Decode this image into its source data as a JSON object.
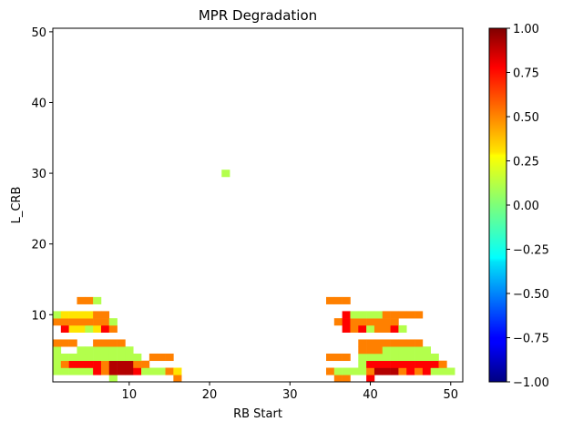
{
  "chart_data": {
    "type": "heatmap",
    "title": "MPR Degradation",
    "xlabel": "RB Start",
    "ylabel": "L_CRB",
    "xlim": [
      0.5,
      51.5
    ],
    "ylim": [
      0.5,
      50.5
    ],
    "x_ticks": [
      10,
      20,
      30,
      40,
      50
    ],
    "y_ticks": [
      10,
      20,
      30,
      40,
      50
    ],
    "grid": false,
    "colormap": "jet",
    "clim": [
      -1,
      1
    ],
    "colorbar_ticks": [
      "−1.00",
      "−0.75",
      "−0.50",
      "−0.25",
      "0.00",
      "0.25",
      "0.50",
      "0.75",
      "1.00"
    ],
    "cells": [
      {
        "x": 8,
        "y": 1,
        "value": 0.1
      },
      {
        "x": 16,
        "y": 1,
        "value": 0.5
      },
      {
        "x": 36,
        "y": 1,
        "value": 0.5
      },
      {
        "x": 37,
        "y": 1,
        "value": 0.5
      },
      {
        "x": 40,
        "y": 1,
        "value": 0.75
      },
      {
        "x": 1,
        "y": 2,
        "value": 0.1
      },
      {
        "x": 2,
        "y": 2,
        "value": 0.1
      },
      {
        "x": 3,
        "y": 2,
        "value": 0.1
      },
      {
        "x": 4,
        "y": 2,
        "value": 0.1
      },
      {
        "x": 5,
        "y": 2,
        "value": 0.1
      },
      {
        "x": 6,
        "y": 2,
        "value": 0.75
      },
      {
        "x": 7,
        "y": 2,
        "value": 0.5
      },
      {
        "x": 8,
        "y": 2,
        "value": 0.9
      },
      {
        "x": 9,
        "y": 2,
        "value": 0.9
      },
      {
        "x": 10,
        "y": 2,
        "value": 0.9
      },
      {
        "x": 11,
        "y": 2,
        "value": 0.75
      },
      {
        "x": 12,
        "y": 2,
        "value": 0.1
      },
      {
        "x": 13,
        "y": 2,
        "value": 0.1
      },
      {
        "x": 14,
        "y": 2,
        "value": 0.1
      },
      {
        "x": 15,
        "y": 2,
        "value": 0.5
      },
      {
        "x": 16,
        "y": 2,
        "value": 0.3
      },
      {
        "x": 35,
        "y": 2,
        "value": 0.5
      },
      {
        "x": 36,
        "y": 2,
        "value": 0.1
      },
      {
        "x": 37,
        "y": 2,
        "value": 0.1
      },
      {
        "x": 38,
        "y": 2,
        "value": 0.1
      },
      {
        "x": 39,
        "y": 2,
        "value": 0.1
      },
      {
        "x": 40,
        "y": 2,
        "value": 0.5
      },
      {
        "x": 41,
        "y": 2,
        "value": 0.9
      },
      {
        "x": 42,
        "y": 2,
        "value": 0.9
      },
      {
        "x": 43,
        "y": 2,
        "value": 0.9
      },
      {
        "x": 44,
        "y": 2,
        "value": 0.5
      },
      {
        "x": 45,
        "y": 2,
        "value": 0.75
      },
      {
        "x": 46,
        "y": 2,
        "value": 0.5
      },
      {
        "x": 47,
        "y": 2,
        "value": 0.75
      },
      {
        "x": 48,
        "y": 2,
        "value": 0.1
      },
      {
        "x": 49,
        "y": 2,
        "value": 0.1
      },
      {
        "x": 50,
        "y": 2,
        "value": 0.1
      },
      {
        "x": 1,
        "y": 3,
        "value": 0.1
      },
      {
        "x": 2,
        "y": 3,
        "value": 0.5
      },
      {
        "x": 3,
        "y": 3,
        "value": 0.75
      },
      {
        "x": 4,
        "y": 3,
        "value": 0.75
      },
      {
        "x": 5,
        "y": 3,
        "value": 0.75
      },
      {
        "x": 6,
        "y": 3,
        "value": 0.75
      },
      {
        "x": 7,
        "y": 3,
        "value": 0.5
      },
      {
        "x": 8,
        "y": 3,
        "value": 0.9
      },
      {
        "x": 9,
        "y": 3,
        "value": 0.9
      },
      {
        "x": 10,
        "y": 3,
        "value": 0.9
      },
      {
        "x": 11,
        "y": 3,
        "value": 0.5
      },
      {
        "x": 12,
        "y": 3,
        "value": 0.5
      },
      {
        "x": 39,
        "y": 3,
        "value": 0.1
      },
      {
        "x": 40,
        "y": 3,
        "value": 0.75
      },
      {
        "x": 41,
        "y": 3,
        "value": 0.75
      },
      {
        "x": 42,
        "y": 3,
        "value": 0.75
      },
      {
        "x": 43,
        "y": 3,
        "value": 0.75
      },
      {
        "x": 44,
        "y": 3,
        "value": 0.75
      },
      {
        "x": 45,
        "y": 3,
        "value": 0.75
      },
      {
        "x": 46,
        "y": 3,
        "value": 0.75
      },
      {
        "x": 47,
        "y": 3,
        "value": 0.75
      },
      {
        "x": 48,
        "y": 3,
        "value": 0.75
      },
      {
        "x": 49,
        "y": 3,
        "value": 0.5
      },
      {
        "x": 1,
        "y": 4,
        "value": 0.1
      },
      {
        "x": 2,
        "y": 4,
        "value": 0.1
      },
      {
        "x": 3,
        "y": 4,
        "value": 0.1
      },
      {
        "x": 4,
        "y": 4,
        "value": 0.1
      },
      {
        "x": 5,
        "y": 4,
        "value": 0.1
      },
      {
        "x": 6,
        "y": 4,
        "value": 0.1
      },
      {
        "x": 7,
        "y": 4,
        "value": 0.1
      },
      {
        "x": 8,
        "y": 4,
        "value": 0.1
      },
      {
        "x": 9,
        "y": 4,
        "value": 0.1
      },
      {
        "x": 10,
        "y": 4,
        "value": 0.1
      },
      {
        "x": 11,
        "y": 4,
        "value": 0.1
      },
      {
        "x": 13,
        "y": 4,
        "value": 0.5
      },
      {
        "x": 14,
        "y": 4,
        "value": 0.5
      },
      {
        "x": 15,
        "y": 4,
        "value": 0.5
      },
      {
        "x": 35,
        "y": 4,
        "value": 0.5
      },
      {
        "x": 36,
        "y": 4,
        "value": 0.5
      },
      {
        "x": 37,
        "y": 4,
        "value": 0.5
      },
      {
        "x": 39,
        "y": 4,
        "value": 0.1
      },
      {
        "x": 40,
        "y": 4,
        "value": 0.1
      },
      {
        "x": 41,
        "y": 4,
        "value": 0.1
      },
      {
        "x": 42,
        "y": 4,
        "value": 0.1
      },
      {
        "x": 43,
        "y": 4,
        "value": 0.1
      },
      {
        "x": 44,
        "y": 4,
        "value": 0.1
      },
      {
        "x": 45,
        "y": 4,
        "value": 0.1
      },
      {
        "x": 46,
        "y": 4,
        "value": 0.1
      },
      {
        "x": 47,
        "y": 4,
        "value": 0.1
      },
      {
        "x": 48,
        "y": 4,
        "value": 0.1
      },
      {
        "x": 1,
        "y": 5,
        "value": 0.1
      },
      {
        "x": 4,
        "y": 5,
        "value": 0.1
      },
      {
        "x": 5,
        "y": 5,
        "value": 0.1
      },
      {
        "x": 6,
        "y": 5,
        "value": 0.1
      },
      {
        "x": 7,
        "y": 5,
        "value": 0.1
      },
      {
        "x": 8,
        "y": 5,
        "value": 0.1
      },
      {
        "x": 9,
        "y": 5,
        "value": 0.1
      },
      {
        "x": 10,
        "y": 5,
        "value": 0.1
      },
      {
        "x": 39,
        "y": 5,
        "value": 0.5
      },
      {
        "x": 40,
        "y": 5,
        "value": 0.5
      },
      {
        "x": 41,
        "y": 5,
        "value": 0.5
      },
      {
        "x": 42,
        "y": 5,
        "value": 0.1
      },
      {
        "x": 43,
        "y": 5,
        "value": 0.1
      },
      {
        "x": 44,
        "y": 5,
        "value": 0.1
      },
      {
        "x": 45,
        "y": 5,
        "value": 0.1
      },
      {
        "x": 46,
        "y": 5,
        "value": 0.1
      },
      {
        "x": 47,
        "y": 5,
        "value": 0.1
      },
      {
        "x": 1,
        "y": 6,
        "value": 0.5
      },
      {
        "x": 2,
        "y": 6,
        "value": 0.5
      },
      {
        "x": 3,
        "y": 6,
        "value": 0.5
      },
      {
        "x": 6,
        "y": 6,
        "value": 0.5
      },
      {
        "x": 7,
        "y": 6,
        "value": 0.5
      },
      {
        "x": 8,
        "y": 6,
        "value": 0.5
      },
      {
        "x": 9,
        "y": 6,
        "value": 0.5
      },
      {
        "x": 39,
        "y": 6,
        "value": 0.5
      },
      {
        "x": 40,
        "y": 6,
        "value": 0.5
      },
      {
        "x": 41,
        "y": 6,
        "value": 0.5
      },
      {
        "x": 42,
        "y": 6,
        "value": 0.5
      },
      {
        "x": 43,
        "y": 6,
        "value": 0.5
      },
      {
        "x": 44,
        "y": 6,
        "value": 0.5
      },
      {
        "x": 45,
        "y": 6,
        "value": 0.5
      },
      {
        "x": 46,
        "y": 6,
        "value": 0.5
      },
      {
        "x": 2,
        "y": 8,
        "value": 0.75
      },
      {
        "x": 3,
        "y": 8,
        "value": 0.3
      },
      {
        "x": 4,
        "y": 8,
        "value": 0.3
      },
      {
        "x": 5,
        "y": 8,
        "value": 0.1
      },
      {
        "x": 6,
        "y": 8,
        "value": 0.3
      },
      {
        "x": 7,
        "y": 8,
        "value": 0.75
      },
      {
        "x": 8,
        "y": 8,
        "value": 0.5
      },
      {
        "x": 37,
        "y": 8,
        "value": 0.75
      },
      {
        "x": 38,
        "y": 8,
        "value": 0.5
      },
      {
        "x": 39,
        "y": 8,
        "value": 0.75
      },
      {
        "x": 40,
        "y": 8,
        "value": 0.1
      },
      {
        "x": 41,
        "y": 8,
        "value": 0.5
      },
      {
        "x": 42,
        "y": 8,
        "value": 0.5
      },
      {
        "x": 43,
        "y": 8,
        "value": 0.75
      },
      {
        "x": 44,
        "y": 8,
        "value": 0.1
      },
      {
        "x": 1,
        "y": 9,
        "value": 0.5
      },
      {
        "x": 2,
        "y": 9,
        "value": 0.5
      },
      {
        "x": 3,
        "y": 9,
        "value": 0.5
      },
      {
        "x": 4,
        "y": 9,
        "value": 0.5
      },
      {
        "x": 5,
        "y": 9,
        "value": 0.5
      },
      {
        "x": 6,
        "y": 9,
        "value": 0.5
      },
      {
        "x": 7,
        "y": 9,
        "value": 0.5
      },
      {
        "x": 8,
        "y": 9,
        "value": 0.1
      },
      {
        "x": 36,
        "y": 9,
        "value": 0.5
      },
      {
        "x": 37,
        "y": 9,
        "value": 0.75
      },
      {
        "x": 38,
        "y": 9,
        "value": 0.5
      },
      {
        "x": 39,
        "y": 9,
        "value": 0.5
      },
      {
        "x": 40,
        "y": 9,
        "value": 0.5
      },
      {
        "x": 41,
        "y": 9,
        "value": 0.5
      },
      {
        "x": 42,
        "y": 9,
        "value": 0.5
      },
      {
        "x": 43,
        "y": 9,
        "value": 0.5
      },
      {
        "x": 1,
        "y": 10,
        "value": 0.1
      },
      {
        "x": 2,
        "y": 10,
        "value": 0.3
      },
      {
        "x": 3,
        "y": 10,
        "value": 0.3
      },
      {
        "x": 4,
        "y": 10,
        "value": 0.3
      },
      {
        "x": 5,
        "y": 10,
        "value": 0.3
      },
      {
        "x": 6,
        "y": 10,
        "value": 0.5
      },
      {
        "x": 7,
        "y": 10,
        "value": 0.5
      },
      {
        "x": 37,
        "y": 10,
        "value": 0.75
      },
      {
        "x": 38,
        "y": 10,
        "value": 0.1
      },
      {
        "x": 39,
        "y": 10,
        "value": 0.1
      },
      {
        "x": 40,
        "y": 10,
        "value": 0.1
      },
      {
        "x": 41,
        "y": 10,
        "value": 0.1
      },
      {
        "x": 42,
        "y": 10,
        "value": 0.5
      },
      {
        "x": 43,
        "y": 10,
        "value": 0.5
      },
      {
        "x": 44,
        "y": 10,
        "value": 0.5
      },
      {
        "x": 45,
        "y": 10,
        "value": 0.5
      },
      {
        "x": 46,
        "y": 10,
        "value": 0.5
      },
      {
        "x": 4,
        "y": 12,
        "value": 0.5
      },
      {
        "x": 5,
        "y": 12,
        "value": 0.5
      },
      {
        "x": 6,
        "y": 12,
        "value": 0.1
      },
      {
        "x": 35,
        "y": 12,
        "value": 0.5
      },
      {
        "x": 36,
        "y": 12,
        "value": 0.5
      },
      {
        "x": 37,
        "y": 12,
        "value": 0.5
      },
      {
        "x": 22,
        "y": 30,
        "value": 0.1
      }
    ]
  }
}
